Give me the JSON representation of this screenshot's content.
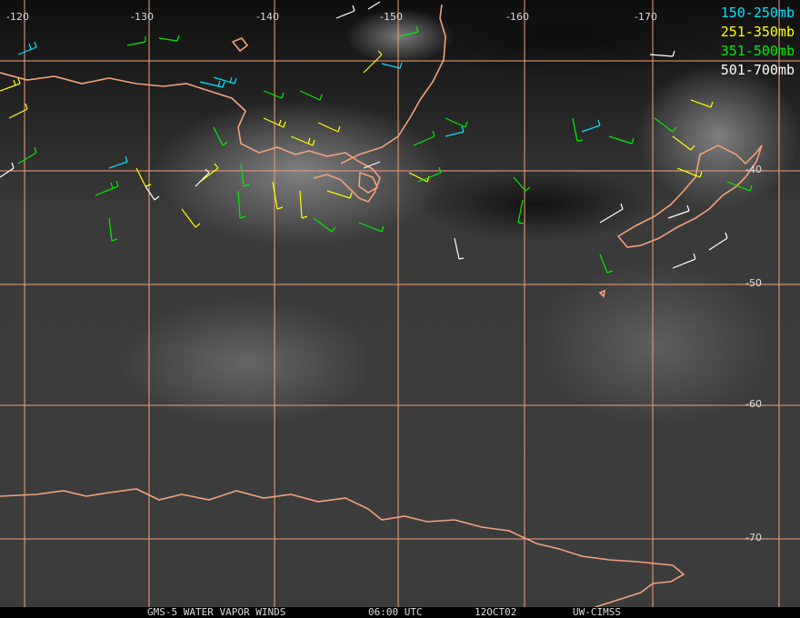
{
  "legend": [
    {
      "label": "150-250mb",
      "color": "#00e5ff"
    },
    {
      "label": "251-350mb",
      "color": "#ffff00"
    },
    {
      "label": "351-500mb",
      "color": "#00ee00"
    },
    {
      "label": "501-700mb",
      "color": "#ffffff"
    }
  ],
  "longitude_labels": [
    "-120",
    "-130",
    "-140",
    "-150",
    "-160",
    "-170"
  ],
  "latitude_labels": [
    "-40",
    "-50",
    "-60",
    "-70"
  ],
  "footer": {
    "product": "GMS-5 WATER VAPOR WINDS",
    "time": "06:00 UTC",
    "date": "12OCT02",
    "source": "UW-CIMSS"
  },
  "colors": {
    "coastline": "#f4a07a",
    "gridline": "#f4a07a",
    "background": "#2a2a2a"
  }
}
